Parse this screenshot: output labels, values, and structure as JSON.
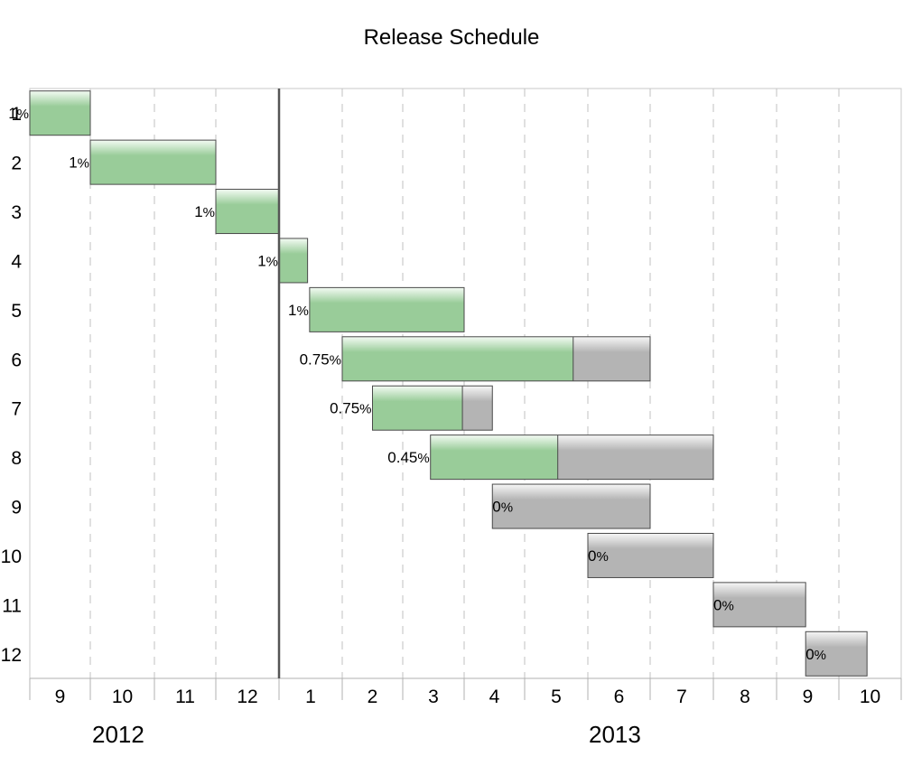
{
  "chart_data": {
    "type": "gantt",
    "title": "Release Schedule",
    "tasks": [
      {
        "label": "1",
        "start": "2012-09-01",
        "end": "2012-09-30",
        "progress_label": "1%",
        "progress": 1.0
      },
      {
        "label": "2",
        "start": "2012-10-01",
        "end": "2012-11-30",
        "progress_label": "1%",
        "progress": 1.0
      },
      {
        "label": "3",
        "start": "2012-12-01",
        "end": "2012-12-31",
        "progress_label": "1%",
        "progress": 1.0
      },
      {
        "label": "4",
        "start": "2013-01-01",
        "end": "2013-01-15",
        "progress_label": "1%",
        "progress": 1.0
      },
      {
        "label": "5",
        "start": "2013-01-16",
        "end": "2013-03-31",
        "progress_label": "1%",
        "progress": 1.0
      },
      {
        "label": "6",
        "start": "2013-02-01",
        "end": "2013-06-30",
        "progress_label": "0.75%",
        "progress": 0.75
      },
      {
        "label": "7",
        "start": "2013-02-15",
        "end": "2013-04-15",
        "progress_label": "0.75%",
        "progress": 0.75
      },
      {
        "label": "8",
        "start": "2013-03-15",
        "end": "2013-07-31",
        "progress_label": "0.45%",
        "progress": 0.45
      },
      {
        "label": "9",
        "start": "2013-04-15",
        "end": "2013-06-30",
        "progress_label": "0%",
        "progress": 0
      },
      {
        "label": "10",
        "start": "2013-06-01",
        "end": "2013-07-31",
        "progress_label": "0%",
        "progress": 0
      },
      {
        "label": "11",
        "start": "2013-08-01",
        "end": "2013-09-15",
        "progress_label": "0%",
        "progress": 0
      },
      {
        "label": "12",
        "start": "2013-09-15",
        "end": "2013-10-15",
        "progress_label": "0%",
        "progress": 0
      }
    ],
    "x_ticks": [
      "9",
      "10",
      "11",
      "12",
      "1",
      "2",
      "3",
      "4",
      "5",
      "6",
      "7",
      "8",
      "9",
      "10"
    ],
    "x_years": [
      "2012",
      "2013"
    ],
    "today_marker": "2013-01-01",
    "grid": true,
    "colors": {
      "complete": "#99cc99",
      "remaining": "#b4b4b4",
      "bar_border": "#4a4a4a"
    }
  }
}
